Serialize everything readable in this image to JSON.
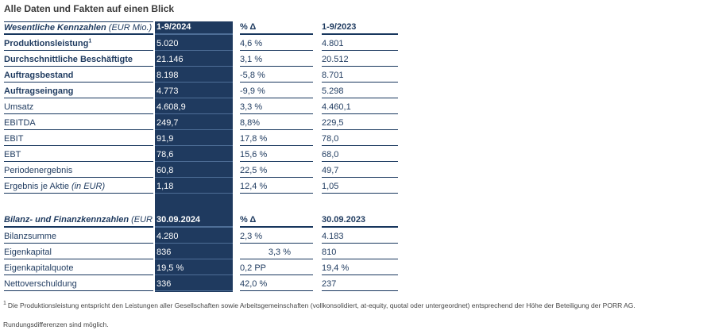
{
  "title": "Alle Daten und Fakten auf einen Blick",
  "colors": {
    "band_background": "#1f3a5f",
    "rule_line": "#17365d",
    "band_divider_line": "#4e6e97",
    "table_text": "#1e3a5f",
    "band_text": "#ffffff"
  },
  "table1": {
    "header": {
      "label": "Wesentliche Kennzahlen",
      "label_unit": "(EUR Mio.)",
      "col_current": "1-9/2024",
      "col_delta": "% Δ",
      "col_prev": "1-9/2023"
    },
    "rows": [
      {
        "label": "Produktionsleistung",
        "sup": "1",
        "current": "5.020",
        "delta": "4,6 %",
        "prev": "4.801"
      },
      {
        "label": "Durchschnittliche Beschäftigte",
        "current": "21.146",
        "delta": "3,1 %",
        "prev": "20.512"
      },
      {
        "label": "Auftragsbestand",
        "current": "8.198",
        "delta": "-5,8 %",
        "prev": "8.701"
      },
      {
        "label": "Auftragseingang",
        "current": "4.773",
        "delta": "-9,9 %",
        "prev": "5.298"
      },
      {
        "label": "Umsatz",
        "current": "4.608,9",
        "delta": "3,3 %",
        "prev": "4.460,1"
      },
      {
        "label": "EBITDA",
        "current": "249,7",
        "delta": "8,8%",
        "prev": "229,5"
      },
      {
        "label": "EBIT",
        "current": "91,9",
        "delta": "17,8 %",
        "prev": "78,0"
      },
      {
        "label": "EBT",
        "current": "78,6",
        "delta": "15,6 %",
        "prev": "68,0"
      },
      {
        "label": "Periodenergebnis",
        "current": "60,8",
        "delta": "22,5 %",
        "prev": "49,7"
      },
      {
        "label": "Ergebnis je Aktie",
        "label_suffix": "(in EUR)",
        "current": "1,18",
        "delta": "12,4 %",
        "prev": "1,05"
      }
    ]
  },
  "table2": {
    "header": {
      "label": "Bilanz- und Finanzkennzahlen",
      "label_unit": "(EUR Mio.)",
      "col_current": "30.09.2024",
      "col_delta": "% Δ",
      "col_prev": "30.09.2023"
    },
    "rows": [
      {
        "label": "Bilanzsumme",
        "current": "4.280",
        "delta": "2,3 %",
        "prev": "4.183"
      },
      {
        "label": "Eigenkapital",
        "current": "836",
        "delta": "3,3 %",
        "prev": "810"
      },
      {
        "label": "Eigenkapitalquote",
        "current": "19,5 %",
        "delta": "0,2 PP",
        "prev": "19,4 %"
      },
      {
        "label": "Nettoverschuldung",
        "current": "336",
        "delta": "42,0 %",
        "prev": "237"
      }
    ]
  },
  "footnotes": {
    "sup": "1",
    "line1": "Die Produktionsleistung entspricht den Leistungen aller Gesellschaften sowie Arbeitsgemeinschaften (vollkonsolidiert, at-equity, quotal oder untergeordnet) entsprechend der Höhe der Beteiligung der PORR AG.",
    "line2": "Rundungsdifferenzen sind möglich."
  }
}
